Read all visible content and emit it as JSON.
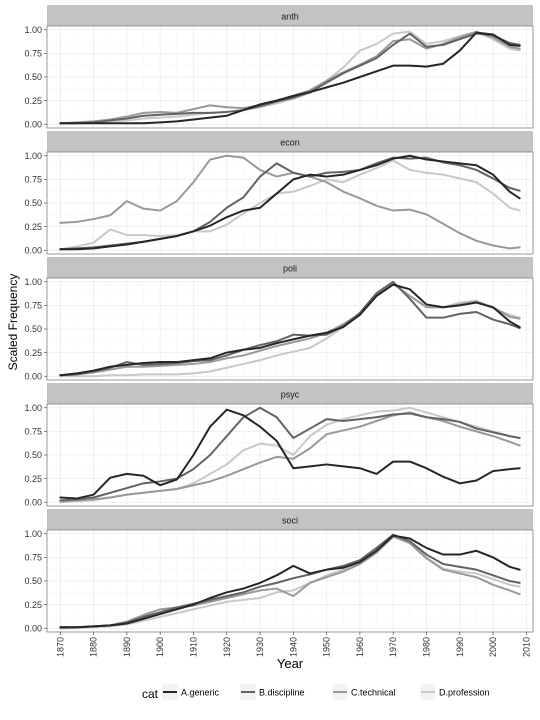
{
  "chart_data": {
    "type": "line",
    "xlabel": "Year",
    "ylabel": "Scaled Frequency",
    "xlim": [
      1866,
      2012
    ],
    "ylim": [
      -0.04,
      1.04
    ],
    "x_ticks": [
      "1870",
      "1880",
      "1890",
      "1900",
      "1910",
      "1920",
      "1930",
      "1940",
      "1950",
      "1960",
      "1970",
      "1980",
      "1990",
      "2000",
      "2010"
    ],
    "y_ticks": [
      "0.00",
      "0.25",
      "0.50",
      "0.75",
      "1.00"
    ],
    "grid": true,
    "legend": {
      "title": "cat",
      "position": "bottom",
      "entries": [
        "A.generic",
        "B.discipline",
        "C.technical",
        "D.profession"
      ]
    },
    "colors": {
      "A.generic": "#262626",
      "B.discipline": "#636363",
      "C.technical": "#999999",
      "D.profession": "#c8c8c8",
      "strip_bg": "#c3c3c3",
      "grid_major": "#ebebeb",
      "grid_minor": "#f5f5f5"
    },
    "x": [
      1870,
      1875,
      1880,
      1885,
      1890,
      1895,
      1900,
      1905,
      1910,
      1915,
      1920,
      1925,
      1930,
      1935,
      1940,
      1945,
      1950,
      1955,
      1960,
      1965,
      1970,
      1975,
      1980,
      1985,
      1990,
      1995,
      2000,
      2005,
      2008
    ],
    "panels": [
      {
        "strip": "anth",
        "series": [
          {
            "name": "A.generic",
            "values": [
              0.01,
              0.01,
              0.01,
              0.01,
              0.01,
              0.01,
              0.02,
              0.03,
              0.05,
              0.07,
              0.09,
              0.15,
              0.21,
              0.25,
              0.3,
              0.34,
              0.39,
              0.44,
              0.5,
              0.56,
              0.62,
              0.62,
              0.61,
              0.64,
              0.78,
              0.97,
              0.95,
              0.84,
              0.83
            ]
          },
          {
            "name": "B.discipline",
            "values": [
              0.01,
              0.01,
              0.02,
              0.04,
              0.06,
              0.09,
              0.1,
              0.11,
              0.12,
              0.12,
              0.13,
              0.15,
              0.19,
              0.24,
              0.28,
              0.34,
              0.44,
              0.54,
              0.62,
              0.7,
              0.84,
              0.96,
              0.82,
              0.84,
              0.9,
              0.96,
              0.94,
              0.86,
              0.84
            ]
          },
          {
            "name": "C.technical",
            "values": [
              0.01,
              0.02,
              0.03,
              0.05,
              0.08,
              0.12,
              0.13,
              0.12,
              0.16,
              0.2,
              0.18,
              0.17,
              0.2,
              0.25,
              0.3,
              0.36,
              0.46,
              0.55,
              0.63,
              0.72,
              0.88,
              0.9,
              0.8,
              0.85,
              0.92,
              0.98,
              0.92,
              0.82,
              0.8
            ]
          },
          {
            "name": "D.profession",
            "values": [
              0.01,
              0.01,
              0.02,
              0.03,
              0.04,
              0.06,
              0.07,
              0.08,
              0.1,
              0.12,
              0.13,
              0.15,
              0.18,
              0.22,
              0.27,
              0.33,
              0.46,
              0.6,
              0.78,
              0.85,
              0.96,
              0.98,
              0.85,
              0.88,
              0.93,
              0.98,
              0.9,
              0.8,
              0.78
            ]
          }
        ]
      },
      {
        "strip": "econ",
        "series": [
          {
            "name": "A.generic",
            "values": [
              0.01,
              0.01,
              0.02,
              0.04,
              0.06,
              0.09,
              0.12,
              0.15,
              0.2,
              0.26,
              0.35,
              0.42,
              0.45,
              0.6,
              0.75,
              0.8,
              0.78,
              0.8,
              0.85,
              0.9,
              0.97,
              1.0,
              0.96,
              0.94,
              0.92,
              0.9,
              0.8,
              0.62,
              0.55
            ]
          },
          {
            "name": "B.discipline",
            "values": [
              0.01,
              0.02,
              0.03,
              0.05,
              0.07,
              0.09,
              0.12,
              0.15,
              0.2,
              0.3,
              0.45,
              0.56,
              0.78,
              0.92,
              0.82,
              0.78,
              0.82,
              0.83,
              0.85,
              0.92,
              0.98,
              0.97,
              0.98,
              0.93,
              0.9,
              0.85,
              0.76,
              0.66,
              0.63
            ]
          },
          {
            "name": "C.technical",
            "values": [
              0.29,
              0.3,
              0.33,
              0.37,
              0.52,
              0.44,
              0.42,
              0.52,
              0.72,
              0.96,
              1.0,
              0.98,
              0.85,
              0.78,
              0.82,
              0.78,
              0.72,
              0.62,
              0.55,
              0.47,
              0.42,
              0.43,
              0.38,
              0.28,
              0.18,
              0.1,
              0.05,
              0.02,
              0.03
            ]
          },
          {
            "name": "D.profession",
            "values": [
              0.01,
              0.04,
              0.08,
              0.22,
              0.16,
              0.16,
              0.15,
              0.16,
              0.2,
              0.2,
              0.27,
              0.39,
              0.5,
              0.6,
              0.62,
              0.68,
              0.75,
              0.72,
              0.8,
              0.87,
              0.95,
              0.85,
              0.82,
              0.8,
              0.76,
              0.72,
              0.6,
              0.45,
              0.42
            ]
          }
        ]
      },
      {
        "strip": "poli",
        "series": [
          {
            "name": "A.generic",
            "values": [
              0.01,
              0.03,
              0.06,
              0.1,
              0.12,
              0.14,
              0.15,
              0.15,
              0.17,
              0.19,
              0.25,
              0.28,
              0.3,
              0.35,
              0.39,
              0.43,
              0.46,
              0.52,
              0.65,
              0.85,
              0.97,
              0.92,
              0.76,
              0.73,
              0.75,
              0.78,
              0.73,
              0.58,
              0.52
            ]
          },
          {
            "name": "B.discipline",
            "values": [
              0.01,
              0.02,
              0.05,
              0.09,
              0.15,
              0.12,
              0.13,
              0.14,
              0.16,
              0.17,
              0.22,
              0.28,
              0.33,
              0.37,
              0.44,
              0.43,
              0.44,
              0.53,
              0.67,
              0.88,
              1.0,
              0.82,
              0.62,
              0.62,
              0.66,
              0.68,
              0.6,
              0.55,
              0.51
            ]
          },
          {
            "name": "C.technical",
            "values": [
              0.01,
              0.02,
              0.04,
              0.07,
              0.1,
              0.1,
              0.11,
              0.12,
              0.13,
              0.15,
              0.19,
              0.22,
              0.27,
              0.32,
              0.36,
              0.4,
              0.46,
              0.55,
              0.66,
              0.87,
              0.98,
              0.85,
              0.73,
              0.73,
              0.76,
              0.79,
              0.73,
              0.63,
              0.61
            ]
          },
          {
            "name": "D.profession",
            "values": [
              0.0,
              0.0,
              0.0,
              0.01,
              0.01,
              0.02,
              0.02,
              0.02,
              0.03,
              0.05,
              0.09,
              0.13,
              0.17,
              0.22,
              0.26,
              0.3,
              0.4,
              0.52,
              0.66,
              0.86,
              0.98,
              0.85,
              0.74,
              0.73,
              0.78,
              0.8,
              0.72,
              0.65,
              0.62
            ]
          }
        ]
      },
      {
        "strip": "psyc",
        "series": [
          {
            "name": "A.generic",
            "values": [
              0.05,
              0.04,
              0.08,
              0.26,
              0.3,
              0.28,
              0.18,
              0.24,
              0.5,
              0.8,
              0.98,
              0.92,
              0.8,
              0.65,
              0.36,
              0.38,
              0.4,
              0.38,
              0.36,
              0.3,
              0.43,
              0.43,
              0.36,
              0.27,
              0.2,
              0.23,
              0.33,
              0.35,
              0.36
            ]
          },
          {
            "name": "B.discipline",
            "values": [
              0.02,
              0.03,
              0.05,
              0.1,
              0.15,
              0.2,
              0.22,
              0.25,
              0.35,
              0.5,
              0.7,
              0.9,
              1.0,
              0.9,
              0.68,
              0.78,
              0.88,
              0.86,
              0.88,
              0.9,
              0.93,
              0.94,
              0.9,
              0.88,
              0.85,
              0.78,
              0.74,
              0.7,
              0.68
            ]
          },
          {
            "name": "C.technical",
            "values": [
              0.01,
              0.02,
              0.03,
              0.05,
              0.08,
              0.1,
              0.12,
              0.14,
              0.18,
              0.22,
              0.28,
              0.35,
              0.42,
              0.48,
              0.46,
              0.57,
              0.72,
              0.76,
              0.8,
              0.86,
              0.92,
              0.95,
              0.9,
              0.86,
              0.8,
              0.75,
              0.7,
              0.64,
              0.6
            ]
          },
          {
            "name": "D.profession",
            "values": [
              0.0,
              0.01,
              0.02,
              0.05,
              0.08,
              0.1,
              0.12,
              0.14,
              0.2,
              0.3,
              0.4,
              0.55,
              0.62,
              0.6,
              0.5,
              0.7,
              0.82,
              0.88,
              0.92,
              0.96,
              0.97,
              1.0,
              0.95,
              0.9,
              0.85,
              0.8,
              0.75,
              0.7,
              0.68
            ]
          }
        ]
      },
      {
        "strip": "soci",
        "series": [
          {
            "name": "A.generic",
            "values": [
              0.01,
              0.01,
              0.02,
              0.03,
              0.05,
              0.1,
              0.15,
              0.2,
              0.25,
              0.32,
              0.38,
              0.42,
              0.48,
              0.56,
              0.66,
              0.58,
              0.62,
              0.64,
              0.7,
              0.82,
              0.98,
              0.95,
              0.85,
              0.78,
              0.78,
              0.82,
              0.75,
              0.65,
              0.62
            ]
          },
          {
            "name": "B.discipline",
            "values": [
              0.01,
              0.01,
              0.02,
              0.03,
              0.06,
              0.12,
              0.17,
              0.22,
              0.26,
              0.3,
              0.34,
              0.38,
              0.44,
              0.48,
              0.53,
              0.57,
              0.62,
              0.66,
              0.72,
              0.85,
              0.99,
              0.92,
              0.78,
              0.68,
              0.65,
              0.62,
              0.56,
              0.5,
              0.48
            ]
          },
          {
            "name": "C.technical",
            "values": [
              0.0,
              0.01,
              0.02,
              0.03,
              0.07,
              0.14,
              0.2,
              0.22,
              0.24,
              0.28,
              0.32,
              0.36,
              0.4,
              0.42,
              0.34,
              0.48,
              0.54,
              0.6,
              0.68,
              0.8,
              0.97,
              0.9,
              0.74,
              0.62,
              0.58,
              0.54,
              0.46,
              0.4,
              0.36
            ]
          },
          {
            "name": "D.profession",
            "values": [
              0.0,
              0.0,
              0.01,
              0.02,
              0.04,
              0.08,
              0.12,
              0.16,
              0.2,
              0.24,
              0.28,
              0.3,
              0.32,
              0.38,
              0.4,
              0.48,
              0.56,
              0.62,
              0.7,
              0.84,
              0.98,
              0.92,
              0.75,
              0.63,
              0.6,
              0.58,
              0.52,
              0.46,
              0.44
            ]
          }
        ]
      }
    ]
  }
}
